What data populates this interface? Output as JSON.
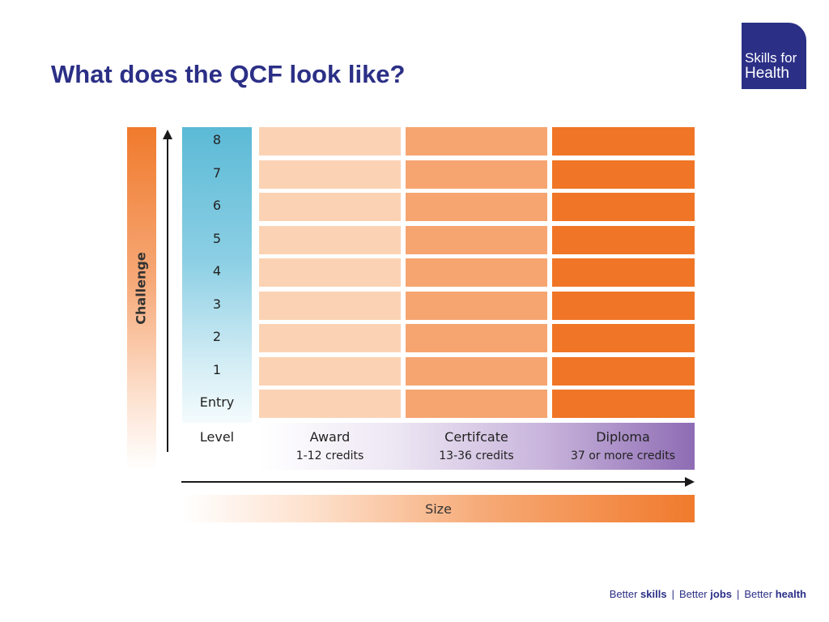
{
  "title": "What does the QCF look like?",
  "logo": {
    "line1": "Skills for",
    "line2": "Health"
  },
  "diagram": {
    "y_axis_label": "Challenge",
    "levels": [
      "8",
      "7",
      "6",
      "5",
      "4",
      "3",
      "2",
      "1",
      "Entry"
    ],
    "level_header": "Level",
    "qualification_types": [
      {
        "name": "Award",
        "credits": "1-12 credits"
      },
      {
        "name": "Certifcate",
        "credits": "13-36 credits"
      },
      {
        "name": "Diploma",
        "credits": "37 or more credits"
      }
    ],
    "x_axis_label": "Size",
    "colors": {
      "award": "#fbd3b4",
      "certificate": "#f6a570",
      "diploma": "#f07526",
      "level_column": "#5bbad6",
      "band": "#8e6cb4"
    }
  },
  "footer": {
    "part1_prefix": "Better",
    "part1_bold": "skills",
    "part2_prefix": "Better",
    "part2_bold": "jobs",
    "part3_prefix": "Better",
    "part3_bold": "health",
    "separator": "|"
  }
}
